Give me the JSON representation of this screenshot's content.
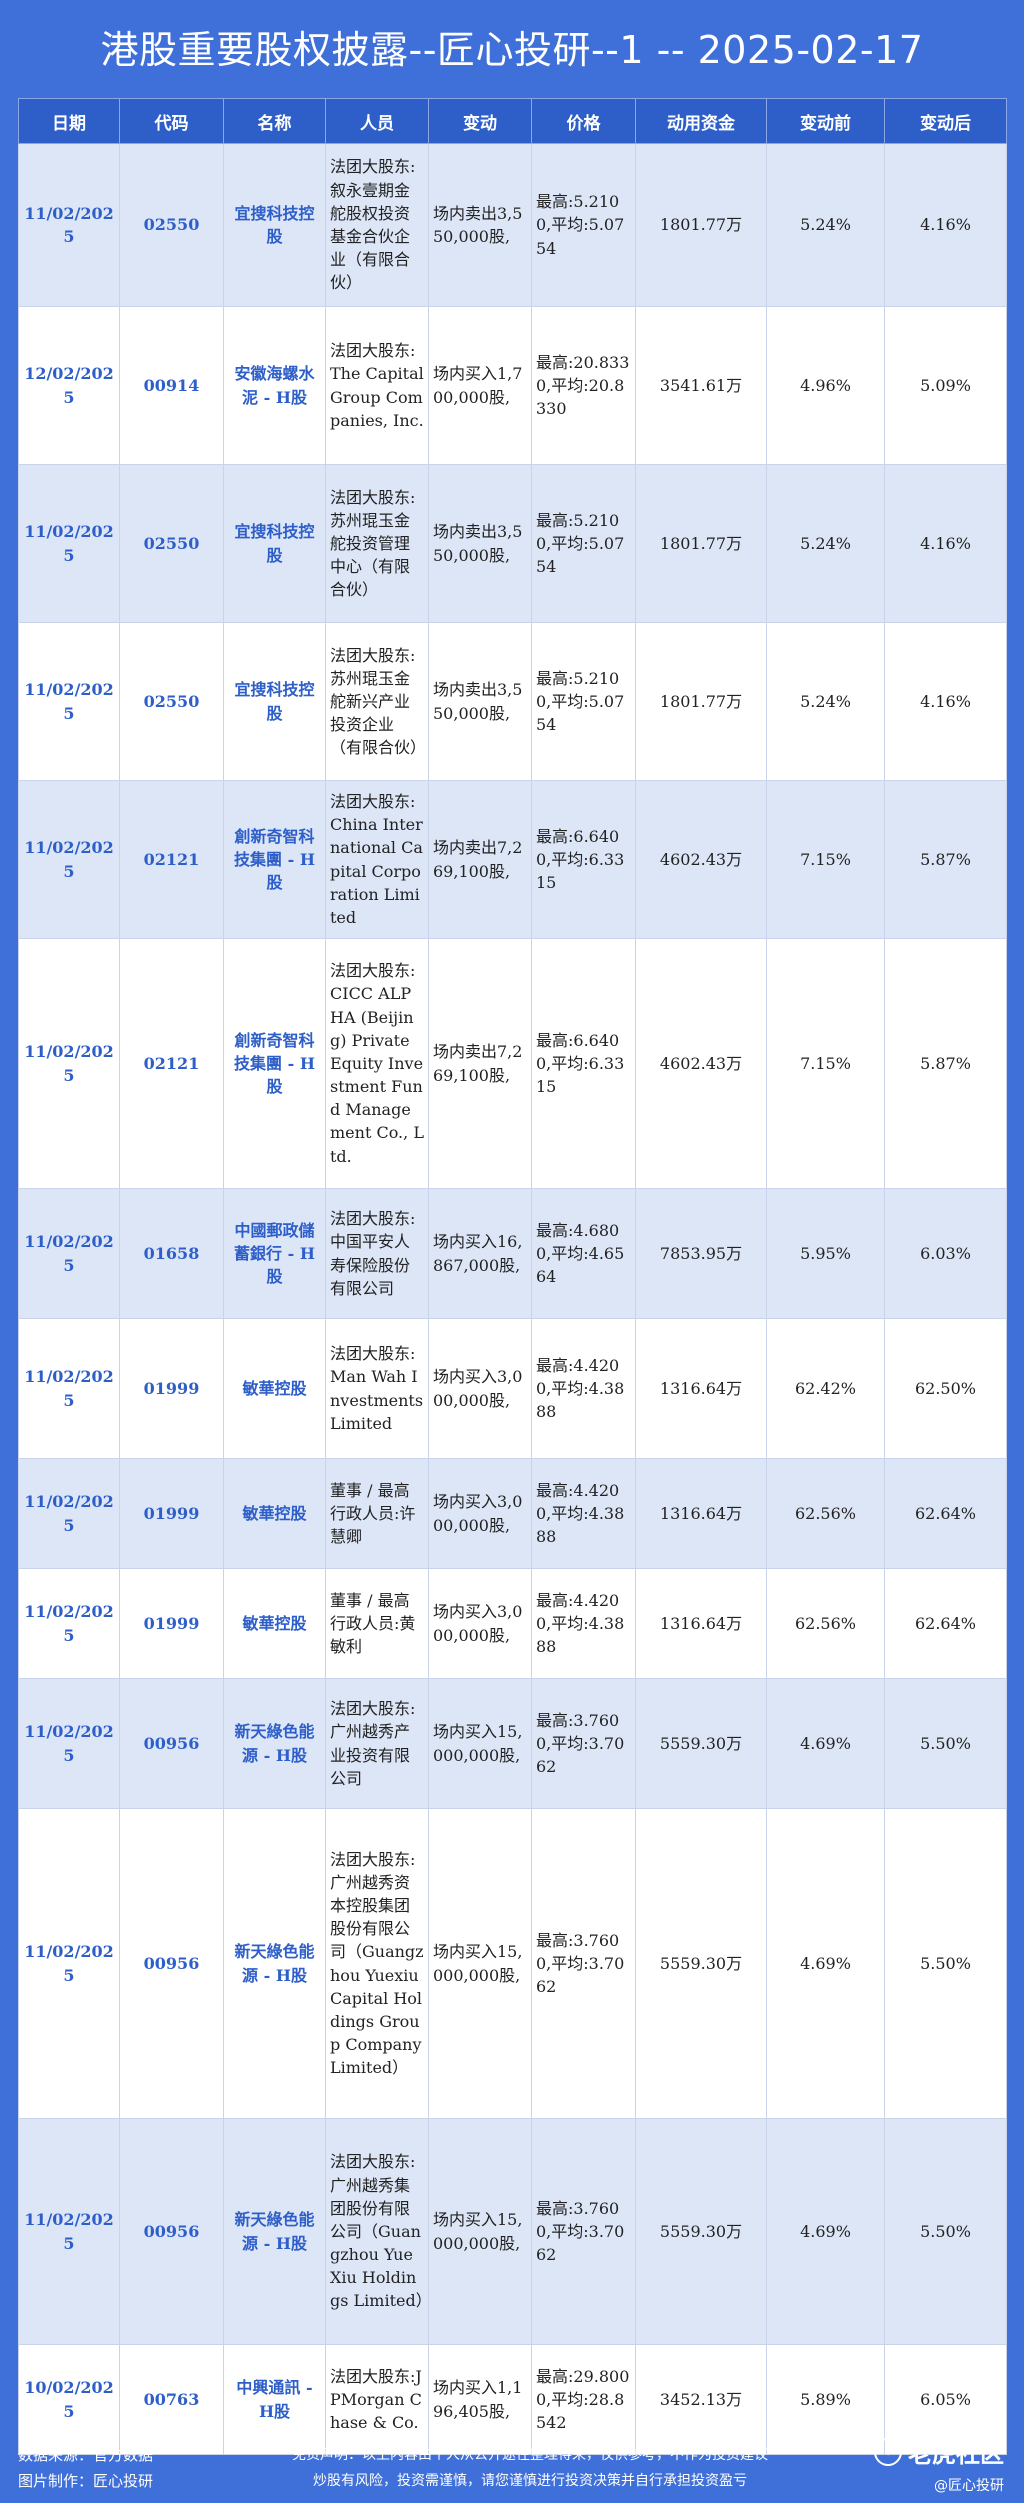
{
  "header": {
    "title": "港股重要股权披露--匠心投研--1 -- 2025-02-17"
  },
  "table": {
    "columns": [
      "日期",
      "代码",
      "名称",
      "人员",
      "变动",
      "价格",
      "动用资金",
      "变动前",
      "变动后"
    ],
    "rows": [
      {
        "date": "11/02/2025",
        "code": "02550",
        "name": "宜搜科技控股",
        "person": "法团大股东:叙永壹期金舵股权投资基金合伙企业（有限合伙）",
        "action": "场内卖出3,550,000股,",
        "price": "最高:5.2100,平均:5.0754",
        "funds": "1801.77万",
        "before": "5.24%",
        "after": "4.16%"
      },
      {
        "date": "12/02/2025",
        "code": "00914",
        "name": "安徽海螺水泥 - H股",
        "person": "法团大股东:The Capital Group Companies, Inc.",
        "action": "场内买入1,700,000股,",
        "price": "最高:20.8330,平均:20.8330",
        "funds": "3541.61万",
        "before": "4.96%",
        "after": "5.09%"
      },
      {
        "date": "11/02/2025",
        "code": "02550",
        "name": "宜搜科技控股",
        "person": "法团大股东:苏州琨玉金舵投资管理中心（有限合伙）",
        "action": "场内卖出3,550,000股,",
        "price": "最高:5.2100,平均:5.0754",
        "funds": "1801.77万",
        "before": "5.24%",
        "after": "4.16%"
      },
      {
        "date": "11/02/2025",
        "code": "02550",
        "name": "宜搜科技控股",
        "person": "法团大股东:苏州琨玉金舵新兴产业投资企业（有限合伙）",
        "action": "场内卖出3,550,000股,",
        "price": "最高:5.2100,平均:5.0754",
        "funds": "1801.77万",
        "before": "5.24%",
        "after": "4.16%"
      },
      {
        "date": "11/02/2025",
        "code": "02121",
        "name": "創新奇智科技集團 - H股",
        "person": "法团大股东:China International Capital Corporation Limited",
        "action": "场内卖出7,269,100股,",
        "price": "最高:6.6400,平均:6.3315",
        "funds": "4602.43万",
        "before": "7.15%",
        "after": "5.87%"
      },
      {
        "date": "11/02/2025",
        "code": "02121",
        "name": "創新奇智科技集團 - H股",
        "person": "法团大股东:CICC ALPHA (Beijing) Private Equity Investment Fund Management Co., Ltd.",
        "action": "场内卖出7,269,100股,",
        "price": "最高:6.6400,平均:6.3315",
        "funds": "4602.43万",
        "before": "7.15%",
        "after": "5.87%"
      },
      {
        "date": "11/02/2025",
        "code": "01658",
        "name": "中國郵政儲蓄銀行 - H股",
        "person": "法团大股东:中国平安人寿保险股份有限公司",
        "action": "场内买入16,867,000股,",
        "price": "最高:4.6800,平均:4.6564",
        "funds": "7853.95万",
        "before": "5.95%",
        "after": "6.03%"
      },
      {
        "date": "11/02/2025",
        "code": "01999",
        "name": "敏華控股",
        "person": "法团大股东:Man Wah Investments Limited",
        "action": "场内买入3,000,000股,",
        "price": "最高:4.4200,平均:4.3888",
        "funds": "1316.64万",
        "before": "62.42%",
        "after": "62.50%"
      },
      {
        "date": "11/02/2025",
        "code": "01999",
        "name": "敏華控股",
        "person": "董事 / 最高行政人员:许慧卿",
        "action": "场内买入3,000,000股,",
        "price": "最高:4.4200,平均:4.3888",
        "funds": "1316.64万",
        "before": "62.56%",
        "after": "62.64%"
      },
      {
        "date": "11/02/2025",
        "code": "01999",
        "name": "敏華控股",
        "person": "董事 / 最高行政人员:黄敏利",
        "action": "场内买入3,000,000股,",
        "price": "最高:4.4200,平均:4.3888",
        "funds": "1316.64万",
        "before": "62.56%",
        "after": "62.64%"
      },
      {
        "date": "11/02/2025",
        "code": "00956",
        "name": "新天綠色能源 - H股",
        "person": "法团大股东:广州越秀产业投资有限公司",
        "action": "场内买入15,000,000股,",
        "price": "最高:3.7600,平均:3.7062",
        "funds": "5559.30万",
        "before": "4.69%",
        "after": "5.50%"
      },
      {
        "date": "11/02/2025",
        "code": "00956",
        "name": "新天綠色能源 - H股",
        "person": "法团大股东:广州越秀资本控股集团股份有限公司（Guangzhou Yuexiu Capital Holdings Group Company Limited）",
        "action": "场内买入15,000,000股,",
        "price": "最高:3.7600,平均:3.7062",
        "funds": "5559.30万",
        "before": "4.69%",
        "after": "5.50%"
      },
      {
        "date": "11/02/2025",
        "code": "00956",
        "name": "新天綠色能源 - H股",
        "person": "法团大股东:广州越秀集团股份有限公司（Guangzhou Yue Xiu Holdings Limited）",
        "action": "场内买入15,000,000股,",
        "price": "最高:3.7600,平均:3.7062",
        "funds": "5559.30万",
        "before": "4.69%",
        "after": "5.50%"
      },
      {
        "date": "10/02/2025",
        "code": "00763",
        "name": "中興通訊 - H股",
        "person": "法团大股东:JPMorgan Chase & Co.",
        "action": "场内买入1,196,405股,",
        "price": "最高:29.8000,平均:28.8542",
        "funds": "3452.13万",
        "before": "5.89%",
        "after": "6.05%"
      }
    ]
  },
  "footer": {
    "source": "数据来源：官方数据",
    "maker": "图片制作：匠心投研",
    "disclaimer_1": "免责声明：以上内容由个人从公开途径整理得来，仅供参考，不作为投资建议",
    "disclaimer_2": "炒股有风险，投资需谨慎，请您谨慎进行投资决策并自行承担投资盈亏",
    "brand": "老虎社区",
    "handle": "@匠心投研"
  }
}
